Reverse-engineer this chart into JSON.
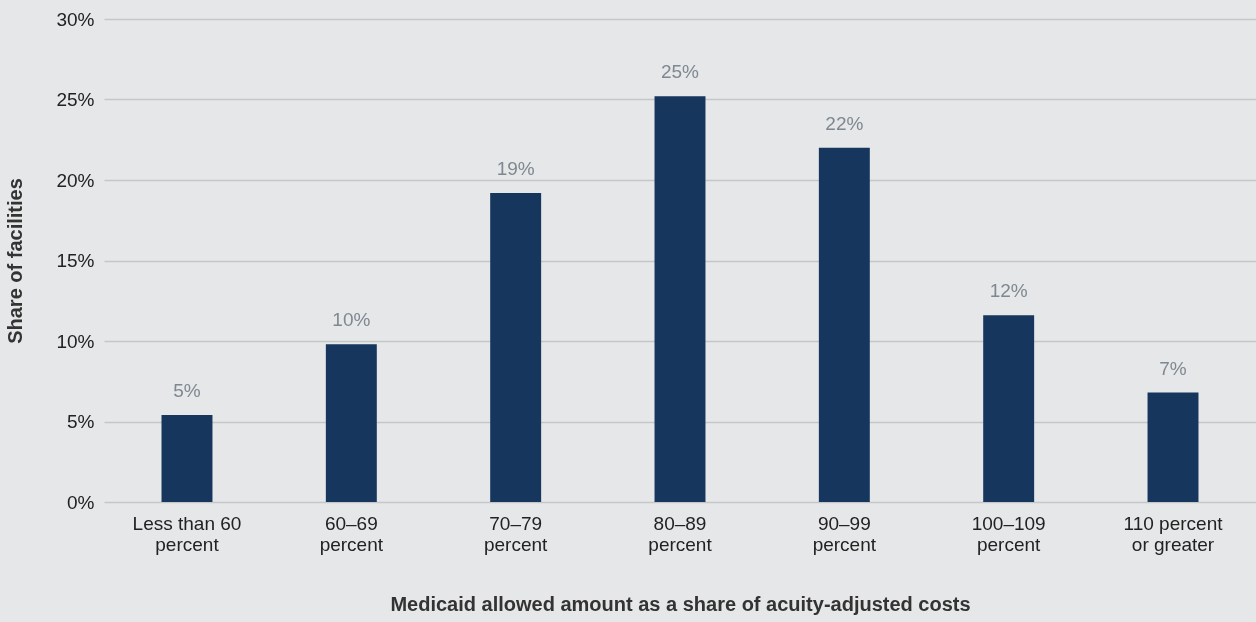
{
  "chart_data": {
    "type": "bar",
    "xlabel": "Medicaid allowed amount as a share of acuity-adjusted costs",
    "ylabel": "Share of facilities",
    "categories": [
      "Less than 60\npercent",
      "60–69\npercent",
      "70–79\npercent",
      "80–89\npercent",
      "90–99\npercent",
      "100–109\npercent",
      "110 percent\nor greater"
    ],
    "values": [
      5.4,
      9.8,
      19.2,
      25.2,
      22.0,
      11.6,
      6.8
    ],
    "value_labels": [
      "5%",
      "10%",
      "19%",
      "25%",
      "22%",
      "12%",
      "7%"
    ],
    "color": "#17365d",
    "ylim": [
      0,
      30
    ],
    "yticks": [
      {
        "value": 0,
        "label": "0%"
      },
      {
        "value": 5,
        "label": "5%"
      },
      {
        "value": 10,
        "label": "10%"
      },
      {
        "value": 15,
        "label": "15%"
      },
      {
        "value": 20,
        "label": "20%"
      },
      {
        "value": 25,
        "label": "25%"
      },
      {
        "value": 30,
        "label": "30%"
      }
    ],
    "grid": "y"
  }
}
